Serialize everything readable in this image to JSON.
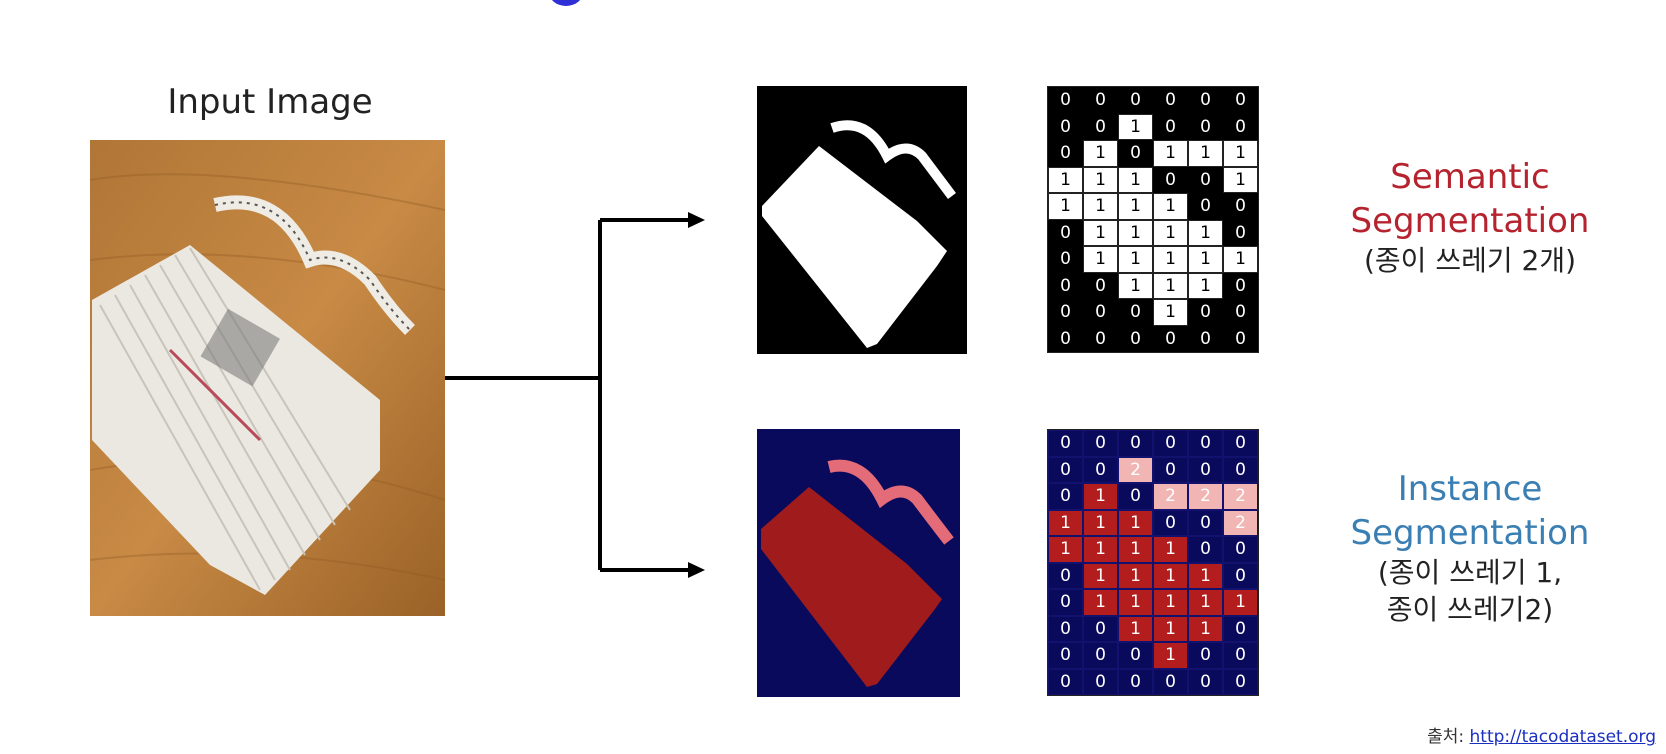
{
  "input_label": "Input Image",
  "semantic": {
    "title_line1": "Semantic",
    "title_line2": "Segmentation",
    "subtitle": "(종이 쓰레기 2개)",
    "grid": [
      [
        0,
        0,
        0,
        0,
        0,
        0
      ],
      [
        0,
        0,
        1,
        0,
        0,
        0
      ],
      [
        0,
        1,
        0,
        1,
        1,
        1
      ],
      [
        1,
        1,
        1,
        0,
        0,
        1
      ],
      [
        1,
        1,
        1,
        1,
        0,
        0
      ],
      [
        0,
        1,
        1,
        1,
        1,
        0
      ],
      [
        0,
        1,
        1,
        1,
        1,
        1
      ],
      [
        0,
        0,
        1,
        1,
        1,
        0
      ],
      [
        0,
        0,
        0,
        1,
        0,
        0
      ],
      [
        0,
        0,
        0,
        0,
        0,
        0
      ]
    ]
  },
  "instance": {
    "title_line1": "Instance",
    "title_line2": "Segmentation",
    "subtitle_line1": "(종이 쓰레기 1,",
    "subtitle_line2": "종이 쓰레기2)",
    "grid": [
      [
        0,
        0,
        0,
        0,
        0,
        0
      ],
      [
        0,
        0,
        2,
        0,
        0,
        0
      ],
      [
        0,
        1,
        0,
        2,
        2,
        2
      ],
      [
        1,
        1,
        1,
        0,
        0,
        2
      ],
      [
        1,
        1,
        1,
        1,
        0,
        0
      ],
      [
        0,
        1,
        1,
        1,
        1,
        0
      ],
      [
        0,
        1,
        1,
        1,
        1,
        1
      ],
      [
        0,
        0,
        1,
        1,
        1,
        0
      ],
      [
        0,
        0,
        0,
        1,
        0,
        0
      ],
      [
        0,
        0,
        0,
        0,
        0,
        0
      ]
    ]
  },
  "source": {
    "prefix": "출처:",
    "url": "http://tacodataset.org"
  },
  "colors": {
    "semantic_title": "#b5232f",
    "instance_title": "#3a7fb3",
    "instance_bg": "#0a0a5c",
    "instance_obj1": "#b31d1d",
    "instance_obj2": "#f1b5b3"
  }
}
